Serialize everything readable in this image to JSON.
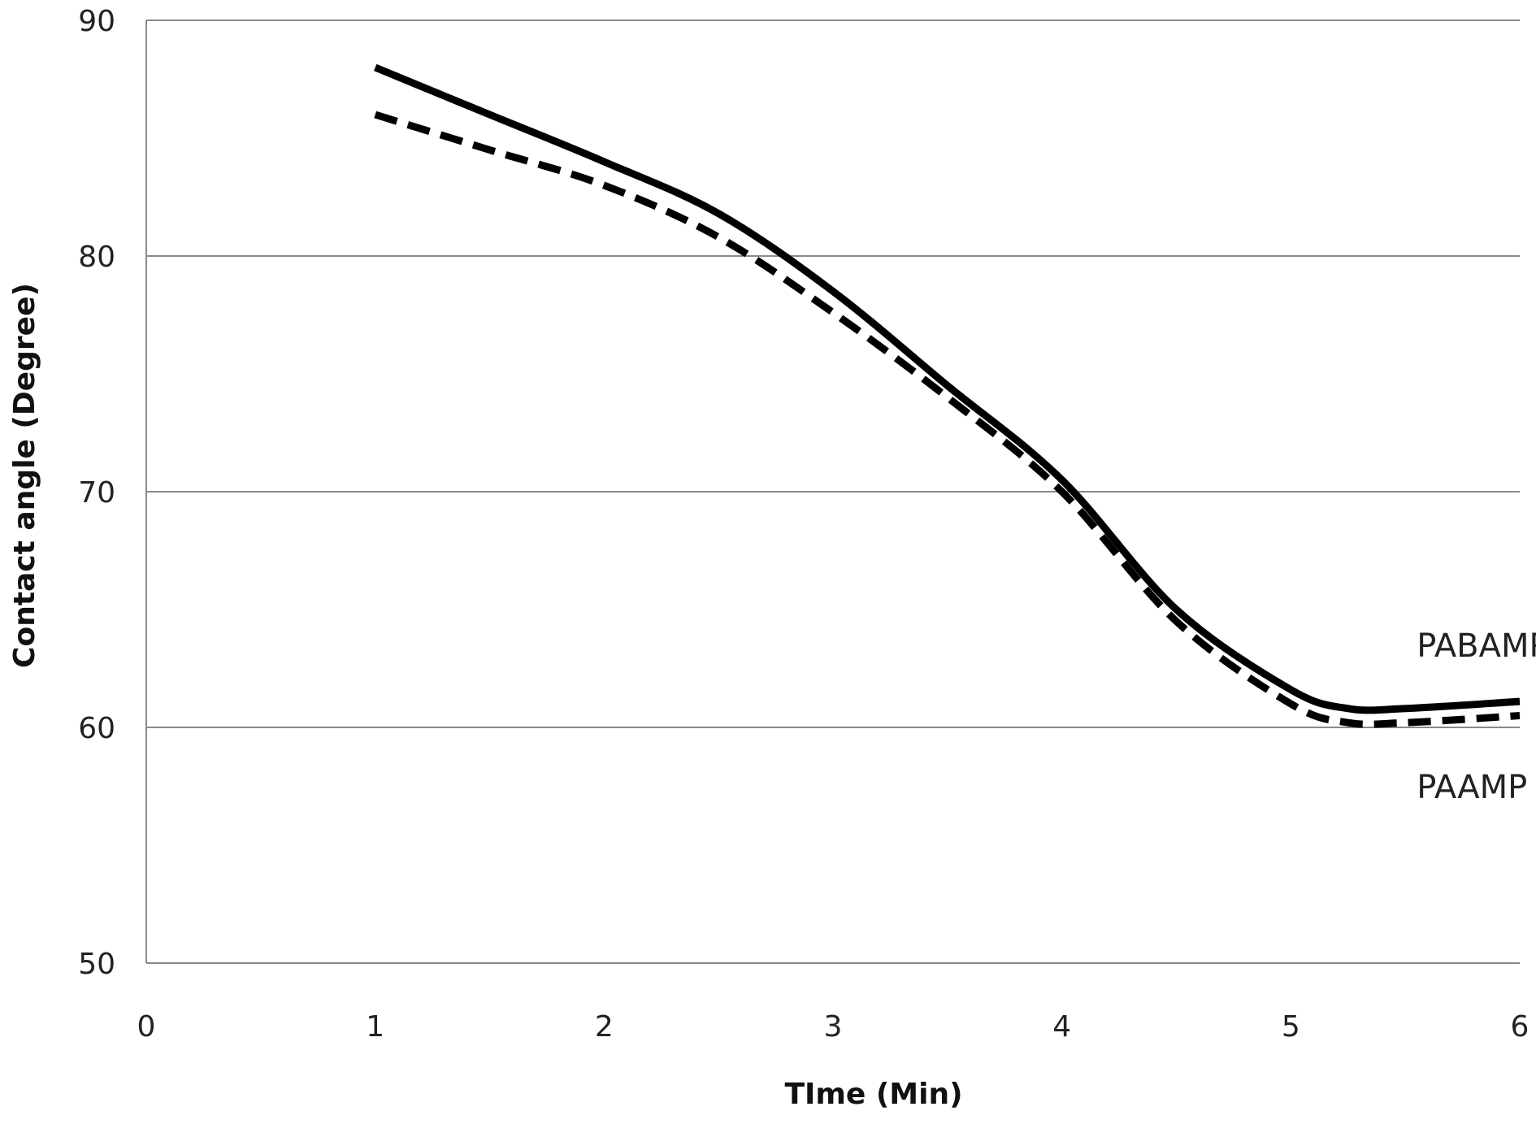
{
  "chart_data": {
    "type": "line",
    "title": "",
    "xlabel": "TIme (Min)",
    "ylabel": "Contact angle  (Degree)",
    "xlim": [
      0,
      6
    ],
    "ylim": [
      50,
      90
    ],
    "x_ticks": [
      0,
      1,
      2,
      3,
      4,
      5,
      6
    ],
    "y_ticks": [
      50,
      60,
      70,
      80,
      90
    ],
    "grid": "horizontal",
    "legend": "inline-labels",
    "series": [
      {
        "name": "PABAMP",
        "style": "solid",
        "color": "#000000",
        "x": [
          1,
          1.5,
          2,
          2.5,
          3,
          3.5,
          4,
          4.5,
          5,
          5.25,
          5.5,
          6
        ],
        "y": [
          88,
          86,
          84,
          81.8,
          78.5,
          74.5,
          70.5,
          65,
          61.6,
          60.8,
          60.8,
          61.1
        ]
      },
      {
        "name": "PAAMP",
        "style": "dashed",
        "color": "#000000",
        "x": [
          1,
          1.5,
          2,
          2.5,
          3,
          3.5,
          4,
          4.5,
          5,
          5.25,
          5.5,
          6
        ],
        "y": [
          86,
          84.5,
          83,
          80.8,
          77.6,
          74,
          70,
          64.5,
          61,
          60.2,
          60.2,
          60.5
        ]
      }
    ],
    "annotations": [
      {
        "text": "PABAMP",
        "x": 5.55,
        "y": 63
      },
      {
        "text": "PAAMP",
        "x": 5.55,
        "y": 57
      }
    ]
  }
}
